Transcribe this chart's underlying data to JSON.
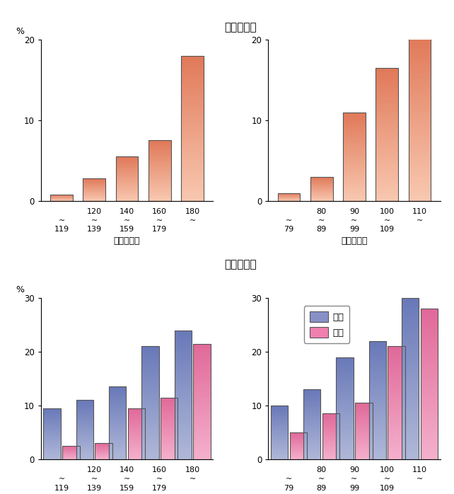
{
  "title_top": "脳　出　血",
  "title_bottom": "脳　梗　塞",
  "top_left": {
    "xlabel": "収縮期血圧",
    "cat_top": [
      "",
      "120",
      "140",
      "160",
      "180"
    ],
    "cat_bot": [
      "119",
      "139",
      "159",
      "179",
      ""
    ],
    "values": [
      0.8,
      2.8,
      5.5,
      7.5,
      18.0
    ],
    "ylim": [
      0,
      20
    ],
    "yticks": [
      0,
      10,
      20
    ]
  },
  "top_right": {
    "xlabel": "拡張期血圧",
    "cat_top": [
      "",
      "80",
      "90",
      "100",
      "110"
    ],
    "cat_bot": [
      "79",
      "89",
      "99",
      "109",
      ""
    ],
    "values": [
      1.0,
      3.0,
      11.0,
      16.5,
      20.5
    ],
    "ylim": [
      0,
      20
    ],
    "yticks": [
      0,
      10,
      20
    ]
  },
  "bottom_left": {
    "xlabel": "収縮期血圧",
    "cat_top": [
      "",
      "120",
      "140",
      "160",
      "180"
    ],
    "cat_bot": [
      "119",
      "139",
      "159",
      "179",
      ""
    ],
    "male": [
      9.5,
      11.0,
      13.5,
      21.0,
      24.0
    ],
    "female": [
      2.5,
      3.0,
      9.5,
      11.5,
      21.5
    ],
    "ylim": [
      0,
      30
    ],
    "yticks": [
      0,
      10,
      20,
      30
    ]
  },
  "bottom_right": {
    "xlabel": "拡張期血圧",
    "cat_top": [
      "",
      "80",
      "90",
      "100",
      "110"
    ],
    "cat_bot": [
      "79",
      "89",
      "99",
      "109",
      ""
    ],
    "male": [
      10.0,
      13.0,
      19.0,
      22.0,
      30.0
    ],
    "female": [
      5.0,
      8.5,
      10.5,
      21.0,
      28.0
    ],
    "ylim": [
      0,
      30
    ],
    "yticks": [
      0,
      10,
      20,
      30
    ]
  },
  "color_top_light": "#F8C8B0",
  "color_top_dark": "#E07858",
  "color_male_light": "#B0B8D8",
  "color_male_dark": "#6878B8",
  "color_female_light": "#F4B0CC",
  "color_female_dark": "#E06898",
  "bar_edge_color": "#555555",
  "bg_color": "#FFFFFF",
  "legend_male": "：男",
  "legend_female": "：女",
  "ylabel": "%"
}
